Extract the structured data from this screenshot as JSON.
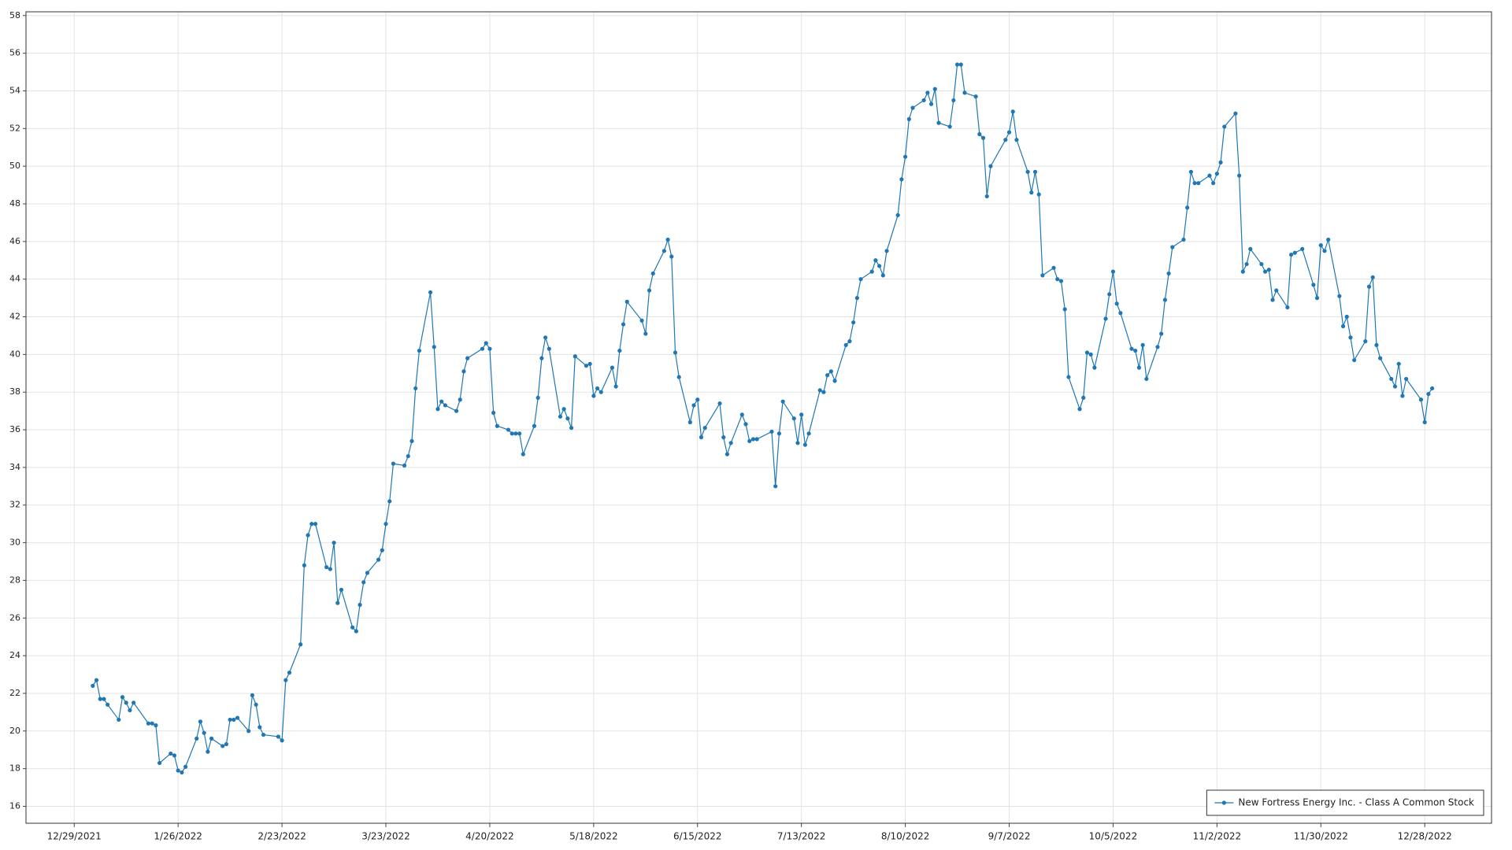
{
  "chart_data": {
    "type": "line",
    "x": [
      "1/3/2022",
      "1/4/2022",
      "1/5/2022",
      "1/6/2022",
      "1/7/2022",
      "1/10/2022",
      "1/11/2022",
      "1/12/2022",
      "1/13/2022",
      "1/14/2022",
      "1/18/2022",
      "1/19/2022",
      "1/20/2022",
      "1/21/2022",
      "1/24/2022",
      "1/25/2022",
      "1/26/2022",
      "1/27/2022",
      "1/28/2022",
      "1/31/2022",
      "2/1/2022",
      "2/2/2022",
      "2/3/2022",
      "2/4/2022",
      "2/7/2022",
      "2/8/2022",
      "2/9/2022",
      "2/10/2022",
      "2/11/2022",
      "2/14/2022",
      "2/15/2022",
      "2/16/2022",
      "2/17/2022",
      "2/18/2022",
      "2/22/2022",
      "2/23/2022",
      "2/24/2022",
      "2/25/2022",
      "2/28/2022",
      "3/1/2022",
      "3/2/2022",
      "3/3/2022",
      "3/4/2022",
      "3/7/2022",
      "3/8/2022",
      "3/9/2022",
      "3/10/2022",
      "3/11/2022",
      "3/14/2022",
      "3/15/2022",
      "3/16/2022",
      "3/17/2022",
      "3/18/2022",
      "3/21/2022",
      "3/22/2022",
      "3/23/2022",
      "3/24/2022",
      "3/25/2022",
      "3/28/2022",
      "3/29/2022",
      "3/30/2022",
      "3/31/2022",
      "4/1/2022",
      "4/4/2022",
      "4/5/2022",
      "4/6/2022",
      "4/7/2022",
      "4/8/2022",
      "4/11/2022",
      "4/12/2022",
      "4/13/2022",
      "4/14/2022",
      "4/18/2022",
      "4/19/2022",
      "4/20/2022",
      "4/21/2022",
      "4/22/2022",
      "4/25/2022",
      "4/26/2022",
      "4/27/2022",
      "4/28/2022",
      "4/29/2022",
      "5/2/2022",
      "5/3/2022",
      "5/4/2022",
      "5/5/2022",
      "5/6/2022",
      "5/9/2022",
      "5/10/2022",
      "5/11/2022",
      "5/12/2022",
      "5/13/2022",
      "5/16/2022",
      "5/17/2022",
      "5/18/2022",
      "5/19/2022",
      "5/20/2022",
      "5/23/2022",
      "5/24/2022",
      "5/25/2022",
      "5/26/2022",
      "5/27/2022",
      "5/31/2022",
      "6/1/2022",
      "6/2/2022",
      "6/3/2022",
      "6/6/2022",
      "6/7/2022",
      "6/8/2022",
      "6/9/2022",
      "6/10/2022",
      "6/13/2022",
      "6/14/2022",
      "6/15/2022",
      "6/16/2022",
      "6/17/2022",
      "6/21/2022",
      "6/22/2022",
      "6/23/2022",
      "6/24/2022",
      "6/27/2022",
      "6/28/2022",
      "6/29/2022",
      "6/30/2022",
      "7/1/2022",
      "7/5/2022",
      "7/6/2022",
      "7/7/2022",
      "7/8/2022",
      "7/11/2022",
      "7/12/2022",
      "7/13/2022",
      "7/14/2022",
      "7/15/2022",
      "7/18/2022",
      "7/19/2022",
      "7/20/2022",
      "7/21/2022",
      "7/22/2022",
      "7/25/2022",
      "7/26/2022",
      "7/27/2022",
      "7/28/2022",
      "7/29/2022",
      "8/1/2022",
      "8/2/2022",
      "8/3/2022",
      "8/4/2022",
      "8/5/2022",
      "8/8/2022",
      "8/9/2022",
      "8/10/2022",
      "8/11/2022",
      "8/12/2022",
      "8/15/2022",
      "8/16/2022",
      "8/17/2022",
      "8/18/2022",
      "8/19/2022",
      "8/22/2022",
      "8/23/2022",
      "8/24/2022",
      "8/25/2022",
      "8/26/2022",
      "8/29/2022",
      "8/30/2022",
      "8/31/2022",
      "9/1/2022",
      "9/2/2022",
      "9/6/2022",
      "9/7/2022",
      "9/8/2022",
      "9/9/2022",
      "9/12/2022",
      "9/13/2022",
      "9/14/2022",
      "9/15/2022",
      "9/16/2022",
      "9/19/2022",
      "9/20/2022",
      "9/21/2022",
      "9/22/2022",
      "9/23/2022",
      "9/26/2022",
      "9/27/2022",
      "9/28/2022",
      "9/29/2022",
      "9/30/2022",
      "10/3/2022",
      "10/4/2022",
      "10/5/2022",
      "10/6/2022",
      "10/7/2022",
      "10/10/2022",
      "10/11/2022",
      "10/12/2022",
      "10/13/2022",
      "10/14/2022",
      "10/17/2022",
      "10/18/2022",
      "10/19/2022",
      "10/20/2022",
      "10/21/2022",
      "10/24/2022",
      "10/25/2022",
      "10/26/2022",
      "10/27/2022",
      "10/28/2022",
      "10/31/2022",
      "11/1/2022",
      "11/2/2022",
      "11/3/2022",
      "11/4/2022",
      "11/7/2022",
      "11/8/2022",
      "11/9/2022",
      "11/10/2022",
      "11/11/2022",
      "11/14/2022",
      "11/15/2022",
      "11/16/2022",
      "11/17/2022",
      "11/18/2022",
      "11/21/2022",
      "11/22/2022",
      "11/23/2022",
      "11/25/2022",
      "11/28/2022",
      "11/29/2022",
      "11/30/2022",
      "12/1/2022",
      "12/2/2022",
      "12/5/2022",
      "12/6/2022",
      "12/7/2022",
      "12/8/2022",
      "12/9/2022",
      "12/12/2022",
      "12/13/2022",
      "12/14/2022",
      "12/15/2022",
      "12/16/2022",
      "12/19/2022",
      "12/20/2022",
      "12/21/2022",
      "12/22/2022",
      "12/23/2022",
      "12/27/2022",
      "12/28/2022",
      "12/29/2022",
      "12/30/2022"
    ],
    "series": [
      {
        "name": "New Fortress Energy Inc. - Class A Common Stock",
        "color": "#1f77b4",
        "values": [
          22.4,
          22.7,
          21.7,
          21.7,
          21.4,
          20.6,
          21.8,
          21.5,
          21.1,
          21.5,
          20.4,
          20.4,
          20.3,
          18.3,
          18.8,
          18.7,
          17.9,
          17.8,
          18.1,
          19.6,
          20.5,
          19.9,
          18.9,
          19.6,
          19.2,
          19.3,
          20.6,
          20.6,
          20.7,
          20.0,
          21.9,
          21.4,
          20.2,
          19.8,
          19.7,
          19.5,
          22.7,
          23.1,
          24.6,
          28.8,
          30.4,
          31.0,
          31.0,
          28.7,
          28.6,
          30.0,
          26.8,
          27.5,
          25.5,
          25.3,
          26.7,
          27.9,
          28.4,
          29.1,
          29.6,
          31.0,
          32.2,
          34.2,
          34.1,
          34.6,
          35.4,
          38.2,
          40.2,
          43.3,
          40.4,
          37.1,
          37.5,
          37.3,
          37.0,
          37.6,
          39.1,
          39.8,
          40.3,
          40.6,
          40.3,
          36.9,
          36.2,
          36.0,
          35.8,
          35.8,
          35.8,
          34.7,
          36.2,
          37.7,
          39.8,
          40.9,
          40.3,
          36.7,
          37.1,
          36.6,
          36.1,
          39.9,
          39.4,
          39.5,
          37.8,
          38.2,
          38.0,
          39.3,
          38.3,
          40.2,
          41.6,
          42.8,
          41.8,
          41.1,
          43.4,
          44.3,
          45.5,
          46.1,
          45.2,
          40.1,
          38.8,
          36.4,
          37.3,
          37.6,
          35.6,
          36.1,
          37.4,
          35.6,
          34.7,
          35.3,
          36.8,
          36.3,
          35.4,
          35.5,
          35.5,
          35.9,
          33.0,
          35.8,
          37.5,
          36.6,
          35.3,
          36.8,
          35.2,
          35.8,
          38.1,
          38.0,
          38.9,
          39.1,
          38.6,
          40.5,
          40.7,
          41.7,
          43.0,
          44.0,
          44.4,
          45.0,
          44.7,
          44.2,
          45.5,
          47.4,
          49.3,
          50.5,
          52.5,
          53.1,
          53.5,
          53.9,
          53.3,
          54.1,
          52.3,
          52.1,
          53.5,
          55.4,
          55.4,
          53.9,
          53.7,
          51.7,
          51.5,
          48.4,
          50.0,
          51.4,
          51.8,
          52.9,
          51.4,
          49.7,
          48.6,
          49.7,
          48.5,
          44.2,
          44.6,
          44.0,
          43.9,
          42.4,
          38.8,
          37.1,
          37.7,
          40.1,
          40.0,
          39.3,
          41.9,
          43.2,
          44.4,
          42.7,
          42.2,
          40.3,
          40.2,
          39.3,
          40.5,
          38.7,
          40.4,
          41.1,
          42.9,
          44.3,
          45.7,
          46.1,
          47.8,
          49.7,
          49.1,
          49.1,
          49.5,
          49.1,
          49.6,
          50.2,
          52.1,
          52.8,
          49.5,
          44.4,
          44.8,
          45.6,
          44.8,
          44.4,
          44.5,
          42.9,
          43.4,
          42.5,
          45.3,
          45.4,
          45.6,
          43.7,
          43.0,
          45.8,
          45.5,
          46.1,
          43.1,
          41.5,
          42.0,
          40.9,
          39.7,
          40.7,
          43.6,
          44.1,
          40.5,
          39.8,
          38.7,
          38.3,
          39.5,
          37.8,
          38.7,
          37.6,
          36.4,
          37.9,
          38.2
        ]
      }
    ],
    "xlim": [
      "12/16/2021",
      "1/15/2023"
    ],
    "xticks": [
      "12/29/2021",
      "1/26/2022",
      "2/23/2022",
      "3/23/2022",
      "4/20/2022",
      "5/18/2022",
      "6/15/2022",
      "7/13/2022",
      "8/10/2022",
      "9/7/2022",
      "10/5/2022",
      "11/2/2022",
      "11/30/2022",
      "12/28/2022"
    ],
    "ylim": [
      15.1,
      58.2
    ],
    "yticks": [
      16,
      18,
      20,
      22,
      24,
      26,
      28,
      30,
      32,
      34,
      36,
      38,
      40,
      42,
      44,
      46,
      48,
      50,
      52,
      54,
      56,
      58
    ],
    "grid": true,
    "legend": "lower right",
    "markers": true
  }
}
